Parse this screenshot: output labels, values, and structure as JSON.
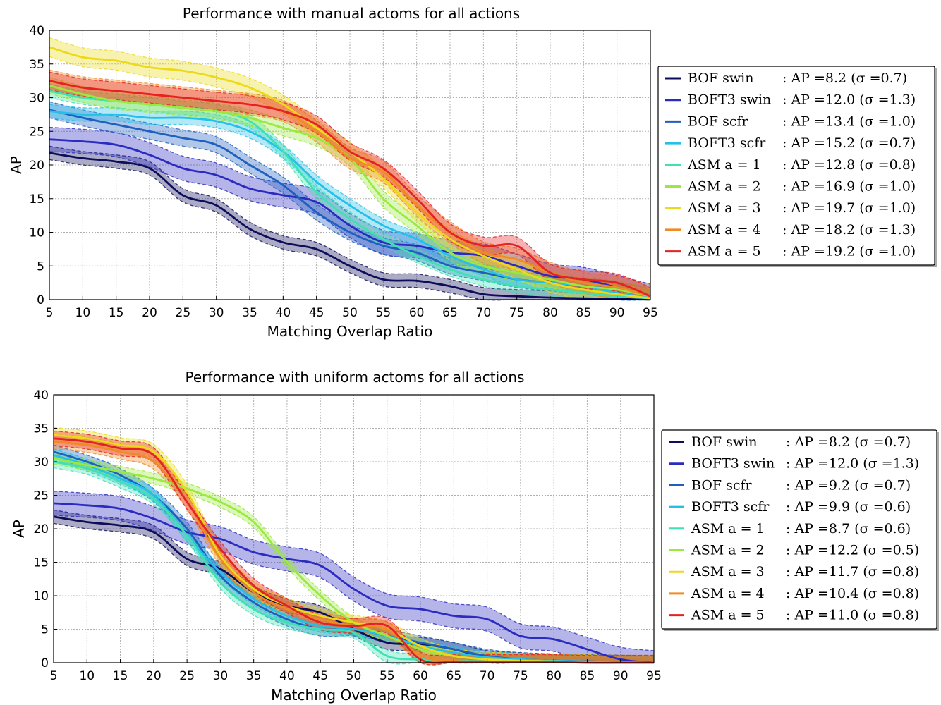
{
  "chart_data": [
    {
      "type": "line",
      "title": "Performance with manual actoms for all actions",
      "xlabel": "Matching Overlap Ratio",
      "ylabel": "AP",
      "xlim": [
        5,
        95
      ],
      "ylim": [
        0,
        40
      ],
      "xticks": [
        "5",
        "10",
        "15",
        "20",
        "25",
        "30",
        "35",
        "40",
        "45",
        "50",
        "55",
        "60",
        "65",
        "70",
        "75",
        "80",
        "85",
        "90",
        "95"
      ],
      "yticks": [
        "0",
        "5",
        "10",
        "15",
        "20",
        "25",
        "30",
        "35",
        "40"
      ],
      "grid": true,
      "legend_position": "right",
      "x": [
        5,
        10,
        15,
        20,
        25,
        30,
        35,
        40,
        45,
        50,
        55,
        60,
        65,
        70,
        75,
        80,
        85,
        90,
        95
      ],
      "series": [
        {
          "name": "BOF swin",
          "label_stat": ": AP =8.2 (σ =0.7)",
          "color": "#0d0d5c",
          "band": 1.0,
          "values": [
            21.8,
            21,
            20.5,
            19.5,
            15.5,
            14,
            10.5,
            8.5,
            7.5,
            5,
            3,
            2.8,
            2,
            0.8,
            0.5,
            0.3,
            0.2,
            0.1,
            0
          ]
        },
        {
          "name": "BOFT3 swin",
          "label_stat": ": AP =12.0 (σ =1.3)",
          "color": "#2b2bc0",
          "band": 1.8,
          "values": [
            23.8,
            23.5,
            23,
            21.5,
            19.5,
            18.5,
            16.5,
            15.5,
            14.5,
            11,
            8.5,
            8,
            7,
            6.5,
            5,
            3.5,
            3,
            1.8,
            0.5
          ]
        },
        {
          "name": "BOF scfr",
          "label_stat": ": AP =13.4 (σ =1.0)",
          "color": "#1e5fc0",
          "band": 1.2,
          "values": [
            28.2,
            27,
            26,
            25,
            24,
            23,
            20,
            17,
            13,
            10,
            8,
            7,
            5,
            4,
            3,
            2.5,
            2,
            1.5,
            0.5
          ]
        },
        {
          "name": "BOFT3 scfr",
          "label_stat": ": AP =15.2 (σ =0.7)",
          "color": "#25c0e8",
          "band": 1.0,
          "values": [
            28,
            27.5,
            27.5,
            27,
            27,
            26.5,
            25,
            22,
            17.5,
            14,
            11,
            9,
            6.5,
            4.5,
            3,
            2.5,
            2,
            1,
            0.3
          ]
        },
        {
          "name": "ASM a = 1",
          "label_stat": ": AP =12.8 (σ =0.8)",
          "color": "#3fe0b4",
          "band": 1.0,
          "values": [
            31,
            30,
            29.5,
            29,
            28.5,
            28,
            26.5,
            22,
            16,
            12,
            9,
            6.5,
            4.5,
            3,
            2,
            1.5,
            1,
            0.5,
            0.2
          ]
        },
        {
          "name": "ASM a = 2",
          "label_stat": ": AP =16.9 (σ =1.0)",
          "color": "#9be83f",
          "band": 1.2,
          "values": [
            31.8,
            30.5,
            29.5,
            29,
            28.5,
            28,
            27,
            25.5,
            24,
            21,
            15,
            11,
            7,
            5,
            4,
            3,
            2,
            1.5,
            0.5
          ]
        },
        {
          "name": "ASM a = 3",
          "label_stat": ": AP =19.7 (σ =1.0)",
          "color": "#ecd91a",
          "band": 1.4,
          "values": [
            37.5,
            36,
            35.5,
            34.5,
            34,
            33,
            31.5,
            29,
            25.5,
            22,
            18,
            13,
            9,
            6.5,
            4.5,
            2.5,
            1.5,
            0.8,
            0.2
          ]
        },
        {
          "name": "ASM a = 4",
          "label_stat": ": AP =18.2 (σ =1.3)",
          "color": "#f08a24",
          "band": 1.6,
          "values": [
            32.5,
            31.5,
            31,
            30.5,
            30,
            29.5,
            29,
            28,
            25,
            21,
            19,
            14,
            10,
            7,
            6,
            4,
            2.5,
            1.8,
            0.5
          ]
        },
        {
          "name": "ASM a = 5",
          "label_stat": ": AP =19.2 (σ =1.0)",
          "color": "#e42222",
          "band": 1.3,
          "values": [
            32.5,
            31.5,
            31,
            30.5,
            30,
            29.5,
            29,
            28,
            26,
            22,
            19.5,
            15,
            10,
            8,
            8,
            4,
            3,
            2.5,
            0.5
          ]
        }
      ]
    },
    {
      "type": "line",
      "title": "Performance with uniform actoms for all actions",
      "xlabel": "Matching Overlap Ratio",
      "ylabel": "AP",
      "xlim": [
        5,
        95
      ],
      "ylim": [
        0,
        40
      ],
      "xticks": [
        "5",
        "10",
        "15",
        "20",
        "25",
        "30",
        "35",
        "40",
        "45",
        "50",
        "55",
        "60",
        "65",
        "70",
        "75",
        "80",
        "85",
        "90",
        "95"
      ],
      "yticks": [
        "0",
        "5",
        "10",
        "15",
        "20",
        "25",
        "30",
        "35",
        "40"
      ],
      "grid": true,
      "legend_position": "right",
      "x": [
        5,
        10,
        15,
        20,
        25,
        30,
        35,
        40,
        45,
        50,
        55,
        60,
        65,
        70,
        75,
        80,
        85,
        90,
        95
      ],
      "series": [
        {
          "name": "BOF swin",
          "label_stat": ": AP =8.2 (σ =0.7)",
          "color": "#0d0d5c",
          "band": 1.0,
          "values": [
            21.8,
            21,
            20.5,
            19.5,
            15.5,
            14,
            10.5,
            8.5,
            7.5,
            5,
            3,
            2.8,
            2,
            0.8,
            0.5,
            0.3,
            0.2,
            0.1,
            0
          ]
        },
        {
          "name": "BOFT3 swin",
          "label_stat": ": AP =12.0 (σ =1.3)",
          "color": "#2b2bc0",
          "band": 1.8,
          "values": [
            23.8,
            23.5,
            23,
            21.5,
            19.5,
            18.5,
            16.5,
            15.5,
            14.5,
            11,
            8.5,
            8,
            7,
            6.5,
            4,
            3.5,
            2,
            0.5,
            0
          ]
        },
        {
          "name": "BOF scfr",
          "label_stat": ": AP =9.2 (σ =0.7)",
          "color": "#1e5fc0",
          "band": 1.0,
          "values": [
            31.5,
            30,
            28,
            25,
            20,
            13,
            9,
            6.5,
            5,
            5,
            4,
            3,
            2,
            1,
            0.5,
            0.3,
            0.2,
            0.1,
            0
          ]
        },
        {
          "name": "BOFT3 scfr",
          "label_stat": ": AP =9.9 (σ =0.6)",
          "color": "#25c0e8",
          "band": 0.9,
          "values": [
            31,
            29.5,
            27.5,
            25,
            19,
            13.5,
            9.5,
            7,
            5.5,
            5,
            4,
            2.5,
            1.5,
            0.8,
            0.5,
            0.3,
            0.2,
            0.1,
            0
          ]
        },
        {
          "name": "ASM a = 1",
          "label_stat": ": AP =8.7 (σ =0.6)",
          "color": "#3fe0b4",
          "band": 0.9,
          "values": [
            30,
            29,
            27,
            24.5,
            19,
            12,
            8,
            6,
            5,
            4.5,
            1,
            0.5,
            0.3,
            0.2,
            0.1,
            0.1,
            0.1,
            0,
            0
          ]
        },
        {
          "name": "ASM a = 2",
          "label_stat": ": AP =12.2 (σ =0.5)",
          "color": "#9be83f",
          "band": 0.8,
          "values": [
            30.5,
            29.5,
            28.5,
            27.5,
            26,
            24,
            21,
            15,
            10,
            6,
            4,
            2,
            1,
            0.5,
            0.3,
            0.2,
            0.1,
            0,
            0
          ]
        },
        {
          "name": "ASM a = 3",
          "label_stat": ": AP =11.7 (σ =0.8)",
          "color": "#ecd91a",
          "band": 1.1,
          "values": [
            34,
            33.5,
            32.5,
            31.5,
            25.5,
            16,
            11,
            8.5,
            7,
            6,
            5,
            2.5,
            1,
            0.5,
            0.3,
            0.2,
            0.1,
            0,
            0
          ]
        },
        {
          "name": "ASM a = 4",
          "label_stat": ": AP =10.4 (σ =0.8)",
          "color": "#f08a24",
          "band": 1.1,
          "values": [
            33,
            32.5,
            31.5,
            30,
            24,
            15.5,
            10.5,
            8,
            6.5,
            5.5,
            5,
            1,
            0.3,
            0.1,
            0.1,
            0.1,
            0,
            0,
            0
          ]
        },
        {
          "name": "ASM a = 5",
          "label_stat": ": AP =11.0 (σ =0.8)",
          "color": "#e42222",
          "band": 1.1,
          "values": [
            33.5,
            33,
            32,
            31,
            24,
            17,
            11.5,
            8.5,
            6,
            5.5,
            5.5,
            0.5,
            0.1,
            0.1,
            0.1,
            0.1,
            0,
            0,
            0
          ]
        }
      ]
    }
  ]
}
